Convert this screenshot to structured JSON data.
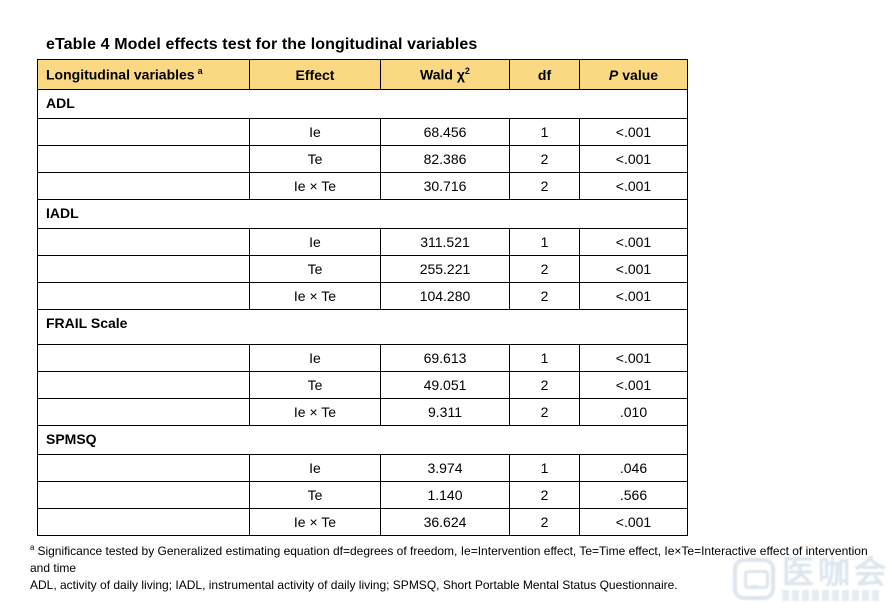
{
  "title": "eTable 4 Model effects test for the longitudinal variables",
  "table": {
    "header": {
      "variables_label": "Longitudinal variables",
      "variables_sup": "a",
      "effect_label": "Effect",
      "wald_label": "Wald χ",
      "wald_sup": "2",
      "df_label": "df",
      "p_italic": "P",
      "p_rest": "value"
    },
    "sections": [
      {
        "name": "ADL",
        "rows": [
          {
            "effect": "Ie",
            "wald": "68.456",
            "df": "1",
            "p": "<.001"
          },
          {
            "effect": "Te",
            "wald": "82.386",
            "df": "2",
            "p": "<.001"
          },
          {
            "effect": "Ie × Te",
            "wald": "30.716",
            "df": "2",
            "p": "<.001"
          }
        ]
      },
      {
        "name": "IADL",
        "rows": [
          {
            "effect": "Ie",
            "wald": "311.521",
            "df": "1",
            "p": "<.001"
          },
          {
            "effect": "Te",
            "wald": "255.221",
            "df": "2",
            "p": "<.001"
          },
          {
            "effect": "Ie × Te",
            "wald": "104.280",
            "df": "2",
            "p": "<.001"
          }
        ]
      },
      {
        "name": "FRAIL Scale",
        "rows": [
          {
            "effect": "Ie",
            "wald": "69.613",
            "df": "1",
            "p": "<.001"
          },
          {
            "effect": "Te",
            "wald": "49.051",
            "df": "2",
            "p": "<.001"
          },
          {
            "effect": "Ie × Te",
            "wald": "9.311",
            "df": "2",
            "p": ".010"
          }
        ]
      },
      {
        "name": "SPMSQ",
        "rows": [
          {
            "effect": "Ie",
            "wald": "3.974",
            "df": "1",
            "p": ".046"
          },
          {
            "effect": "Te",
            "wald": "1.140",
            "df": "2",
            "p": ".566"
          },
          {
            "effect": "Ie × Te",
            "wald": "36.624",
            "df": "2",
            "p": "<.001"
          }
        ]
      }
    ]
  },
  "footnotes": {
    "sup": "a",
    "line1": "Significance tested by Generalized estimating equation df=degrees of freedom, Ie=Intervention effect, Te=Time effect, Ie×Te=Interactive effect of intervention and time",
    "line2": "ADL, activity of daily living; IADL, instrumental activity of daily living; SPMSQ, Short Portable Mental Status Questionnaire."
  },
  "watermark": {
    "main_text": "医咖会"
  },
  "colors": {
    "header_bg": "#FBD983",
    "border": "#000000",
    "watermark": "#8FAFC6"
  }
}
